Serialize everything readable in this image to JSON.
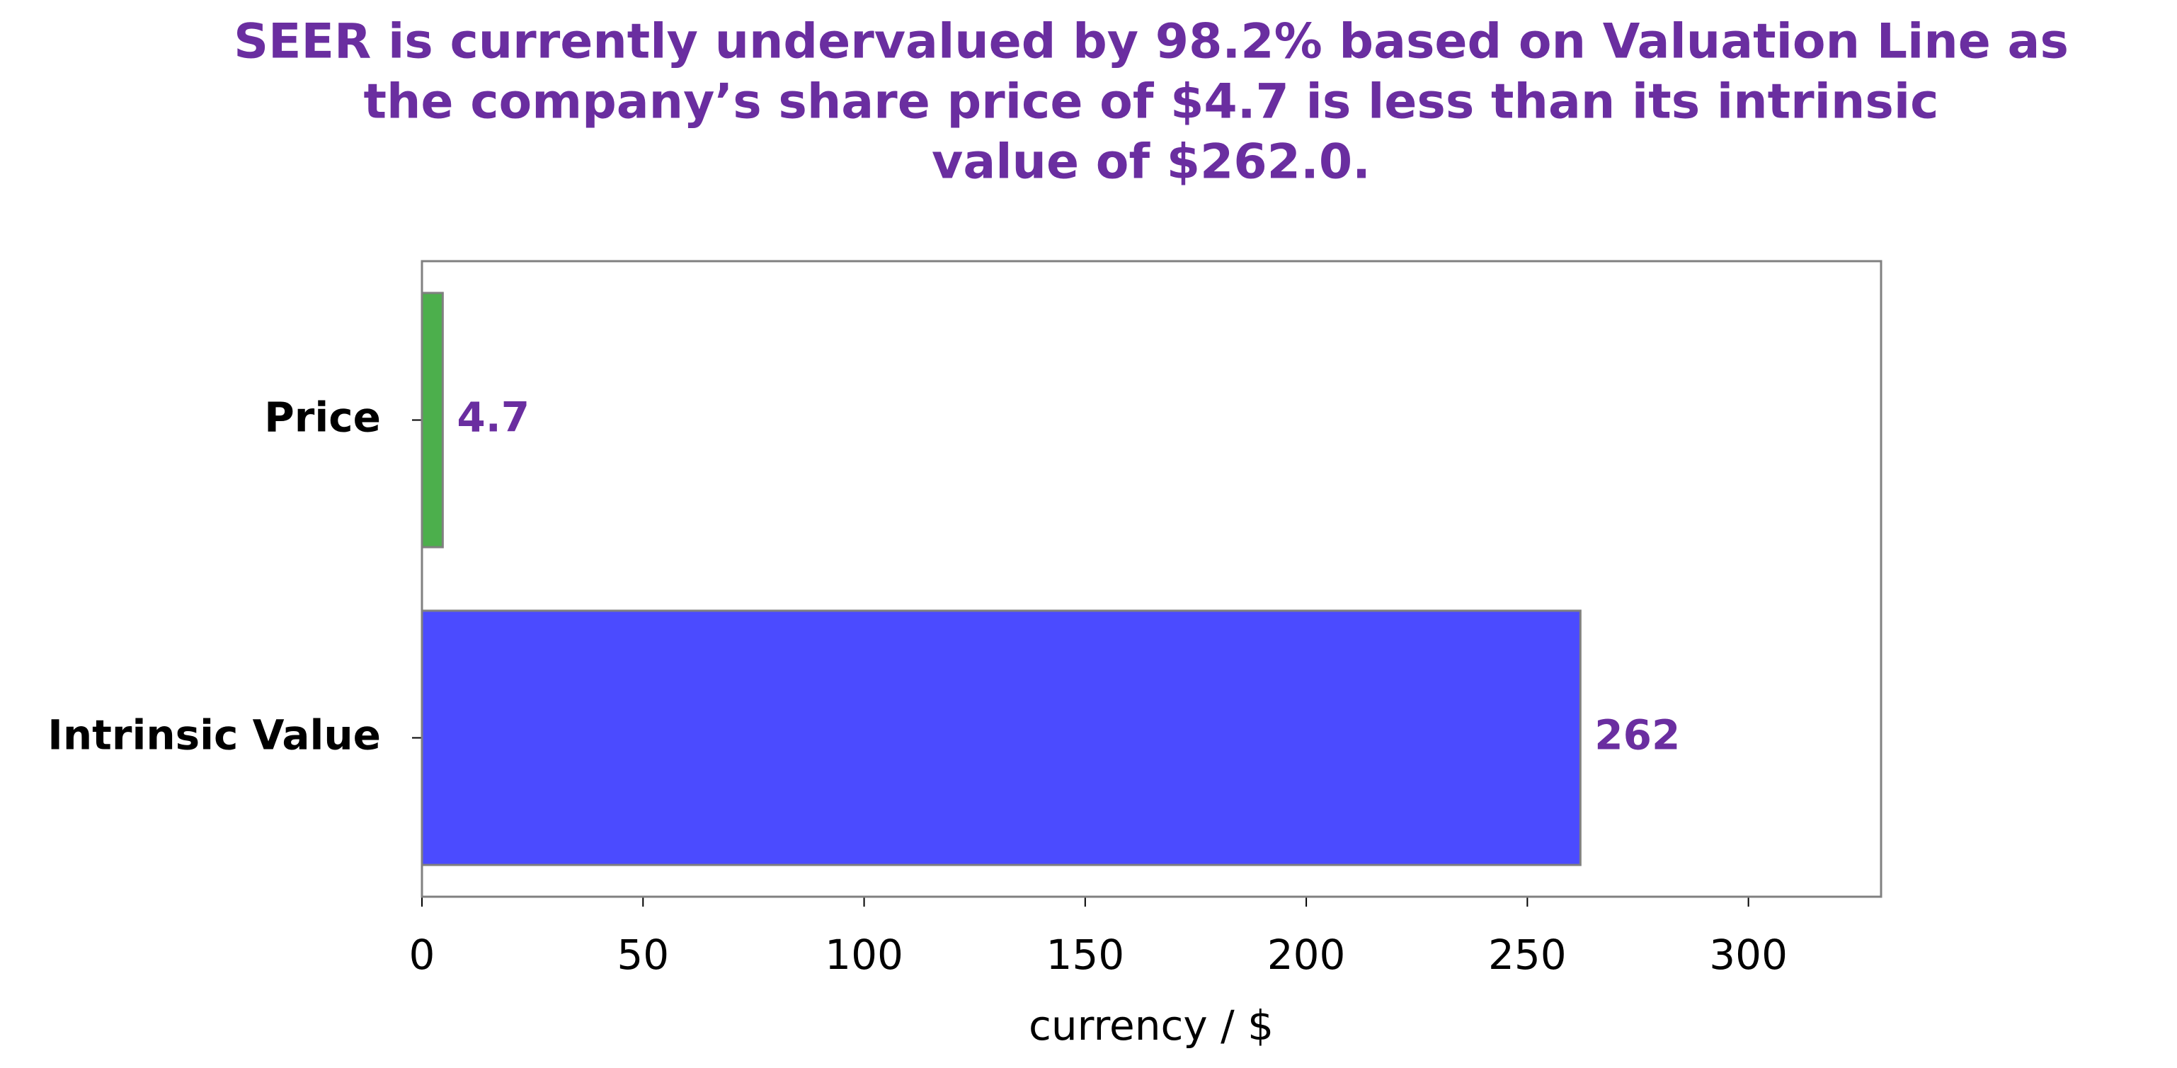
{
  "chart_data": {
    "type": "barh",
    "title": [
      "SEER is currently undervalued by 98.2% based on Valuation Line as",
      "the company’s share price of $4.7 is less than its intrinsic",
      "value of $262.0."
    ],
    "categories": [
      "Price",
      "Intrinsic Value"
    ],
    "values": [
      4.7,
      262
    ],
    "colors": [
      "#4caf4c",
      "#4b4bff"
    ],
    "xlabel": "currency / $",
    "xlim": [
      0,
      330
    ],
    "xticks": [
      0,
      50,
      100,
      150,
      200,
      250,
      300
    ]
  }
}
